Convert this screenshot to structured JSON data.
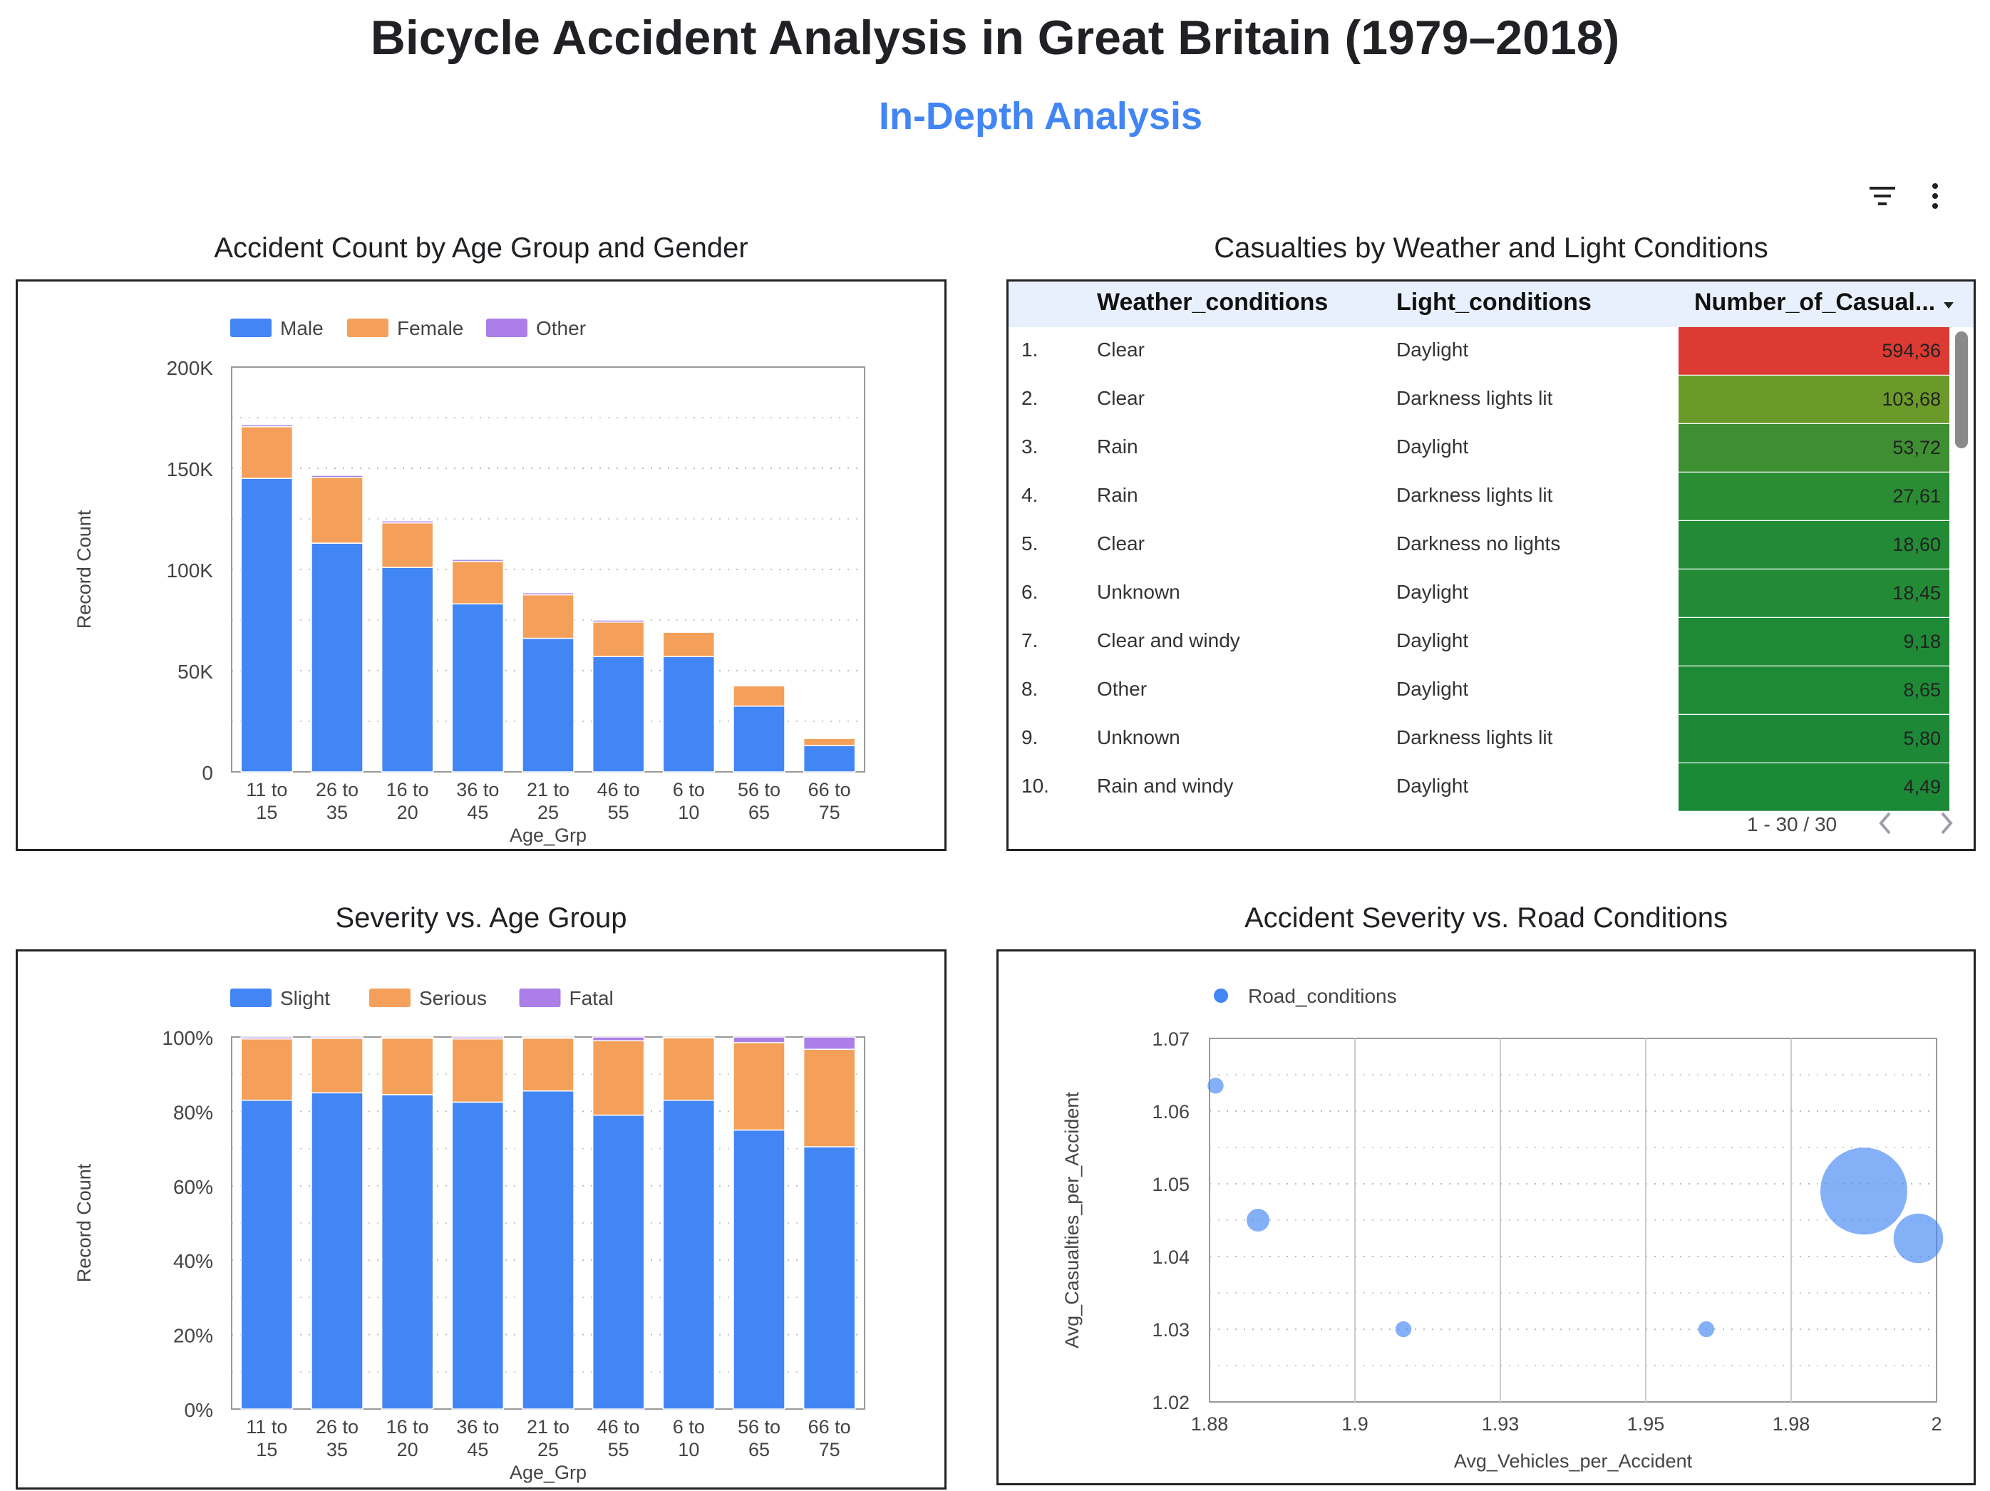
{
  "page": {
    "title": "Bicycle Accident Analysis in Great Britain (1979–2018)",
    "subtitle": "In-Depth Analysis"
  },
  "toolbar": {
    "filter_icon": "filter-list-icon",
    "more_icon": "more-vert-icon"
  },
  "colors": {
    "blue": "#4285f4",
    "orange": "#f4a05a",
    "purple": "#ab7ee8"
  },
  "age_gender_chart": {
    "title": "Accident Count by Age Group and Gender",
    "chart_data": {
      "type": "bar",
      "stacked": true,
      "categories": [
        "11 to 15",
        "26 to 35",
        "16 to 20",
        "36 to 45",
        "21 to 25",
        "46 to 55",
        "6 to 10",
        "56 to 65",
        "66 to 75"
      ],
      "series": [
        {
          "name": "Male",
          "color": "#4285f4",
          "values": [
            145000,
            113000,
            101000,
            83000,
            66000,
            57000,
            57000,
            32500,
            13000
          ]
        },
        {
          "name": "Female",
          "color": "#f4a05a",
          "values": [
            25500,
            32500,
            22000,
            21000,
            21500,
            17000,
            12000,
            10000,
            3500
          ]
        },
        {
          "name": "Other",
          "color": "#ab7ee8",
          "values": [
            1000,
            1000,
            1000,
            1000,
            1000,
            1000,
            500,
            500,
            500
          ]
        }
      ],
      "xlabel": "Age_Grp",
      "ylabel": "Record Count",
      "ylim": [
        0,
        200000
      ],
      "yticks": [
        "0",
        "50K",
        "100K",
        "150K",
        "200K"
      ],
      "legend": "top-left",
      "grid": true
    }
  },
  "weather_table": {
    "title": "Casualties by Weather and Light Conditions",
    "columns": [
      "Weather_conditions",
      "Light_conditions",
      "Number_of_Casual..."
    ],
    "sort_icon": "sort-desc-icon",
    "rows": [
      {
        "rank": "1.",
        "weather": "Clear",
        "light": "Daylight",
        "value": "594,36",
        "color": "#dc3a32"
      },
      {
        "rank": "2.",
        "weather": "Clear",
        "light": "Darkness lights lit",
        "value": "103,68",
        "color": "#6b9a2a"
      },
      {
        "rank": "3.",
        "weather": "Rain",
        "light": "Daylight",
        "value": "53,72",
        "color": "#3d8f31"
      },
      {
        "rank": "4.",
        "weather": "Rain",
        "light": "Darkness lights lit",
        "value": "27,61",
        "color": "#2a8c33"
      },
      {
        "rank": "5.",
        "weather": "Clear",
        "light": "Darkness no lights",
        "value": "18,60",
        "color": "#238b35"
      },
      {
        "rank": "6.",
        "weather": "Unknown",
        "light": "Daylight",
        "value": "18,45",
        "color": "#238b35"
      },
      {
        "rank": "7.",
        "weather": "Clear and windy",
        "light": "Daylight",
        "value": "9,18",
        "color": "#1f8a36"
      },
      {
        "rank": "8.",
        "weather": "Other",
        "light": "Daylight",
        "value": "8,65",
        "color": "#1f8a36"
      },
      {
        "rank": "9.",
        "weather": "Unknown",
        "light": "Darkness lights lit",
        "value": "5,80",
        "color": "#1d8937"
      },
      {
        "rank": "10.",
        "weather": "Rain and windy",
        "light": "Daylight",
        "value": "4,49",
        "color": "#1c8937"
      }
    ],
    "pagination": "1 - 30 / 30"
  },
  "severity_chart": {
    "title": "Severity vs. Age Group",
    "chart_data": {
      "type": "bar",
      "stacked_percent": true,
      "categories": [
        "11 to 15",
        "26 to 35",
        "16 to 20",
        "36 to 45",
        "21 to 25",
        "46 to 55",
        "6 to 10",
        "56 to 65",
        "66 to 75"
      ],
      "series": [
        {
          "name": "Slight",
          "color": "#4285f4",
          "values": [
            83,
            85,
            84.5,
            82.5,
            85.5,
            79,
            83,
            75,
            70.5
          ]
        },
        {
          "name": "Serious",
          "color": "#f4a05a",
          "values": [
            16.5,
            14.6,
            15.2,
            17,
            14.2,
            20,
            16.8,
            23.5,
            26.2
          ]
        },
        {
          "name": "Fatal",
          "color": "#ab7ee8",
          "values": [
            0.5,
            0.4,
            0.3,
            0.5,
            0.3,
            1,
            0.2,
            1.5,
            3.3
          ]
        }
      ],
      "xlabel": "Age_Grp",
      "ylabel": "Record Count",
      "ylim": [
        0,
        100
      ],
      "yticks": [
        "0%",
        "20%",
        "40%",
        "60%",
        "80%",
        "100%"
      ],
      "legend": "top-left",
      "grid": true
    }
  },
  "road_chart": {
    "title": "Accident Severity vs. Road Conditions",
    "chart_data": {
      "type": "scatter",
      "series": [
        {
          "name": "Road_conditions",
          "color": "#4285f4",
          "points": [
            {
              "x": 1.881,
              "y": 1.0635,
              "size": 2
            },
            {
              "x": 1.888,
              "y": 1.045,
              "size": 5
            },
            {
              "x": 1.912,
              "y": 1.03,
              "size": 2
            },
            {
              "x": 1.962,
              "y": 1.03,
              "size": 2
            },
            {
              "x": 1.988,
              "y": 1.049,
              "size": 100
            },
            {
              "x": 1.997,
              "y": 1.0425,
              "size": 30
            }
          ]
        }
      ],
      "xlabel": "Avg_Vehicles_per_Accident",
      "ylabel": "Avg_Casualties_per_Accident",
      "xlim": [
        1.88,
        2.0
      ],
      "ylim": [
        1.02,
        1.07
      ],
      "xticks": [
        "1.88",
        "1.9",
        "1.93",
        "1.95",
        "1.98",
        "2"
      ],
      "yticks": [
        "1.02",
        "1.03",
        "1.04",
        "1.05",
        "1.06",
        "1.07"
      ],
      "legend": "top-left",
      "grid": true
    }
  }
}
